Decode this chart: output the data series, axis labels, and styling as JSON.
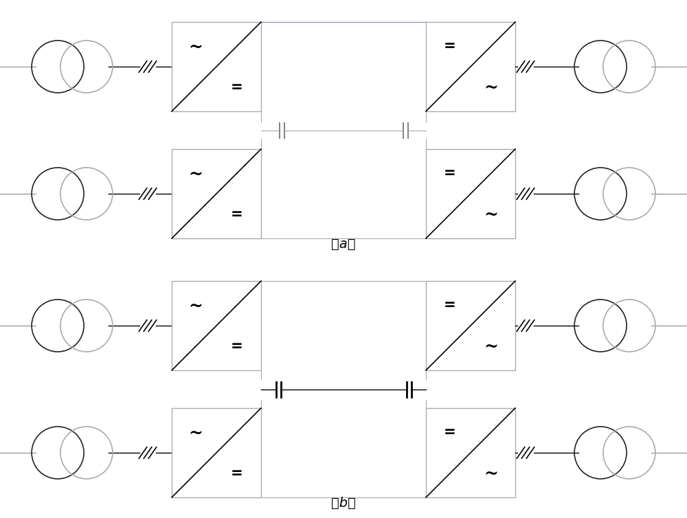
{
  "fig_width": 10.0,
  "fig_height": 7.54,
  "bg_color": "#ffffff",
  "label_a": "（a）",
  "label_b": "（b）",
  "box_border": "#aaaaaa",
  "bus_color": "#aaaaaa",
  "purple_color": "#aa88bb",
  "black": "#000000"
}
